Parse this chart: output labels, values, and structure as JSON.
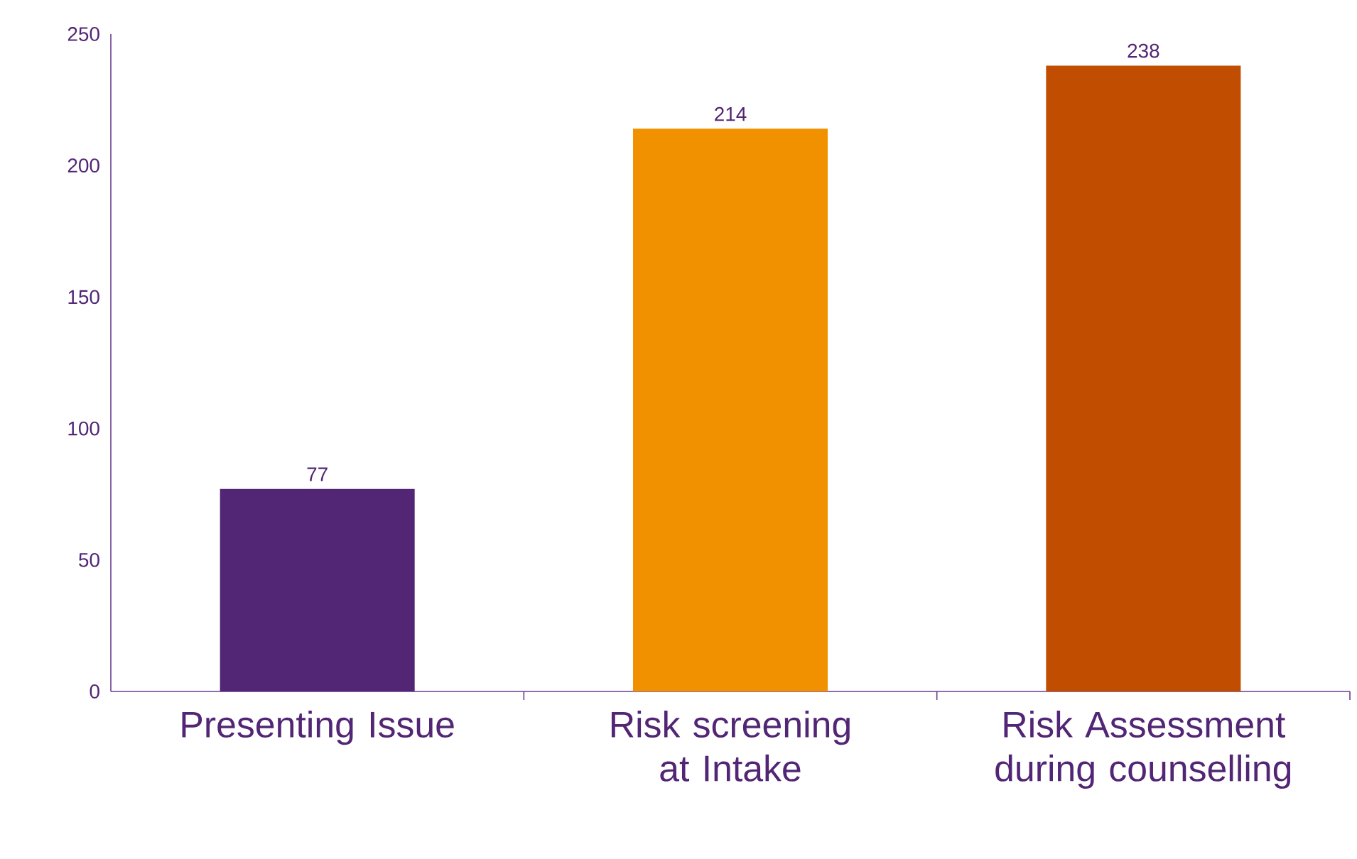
{
  "chart_data": {
    "type": "bar",
    "categories": [
      "Presenting Issue",
      "Risk screening at Intake",
      "Risk Assessment during counselling"
    ],
    "values": [
      77,
      214,
      238
    ],
    "colors": [
      "#522675",
      "#f29100",
      "#c04d00"
    ],
    "ylim": [
      0,
      250
    ],
    "yticks": [
      0,
      50,
      100,
      150,
      200,
      250
    ],
    "data_labels": true
  }
}
